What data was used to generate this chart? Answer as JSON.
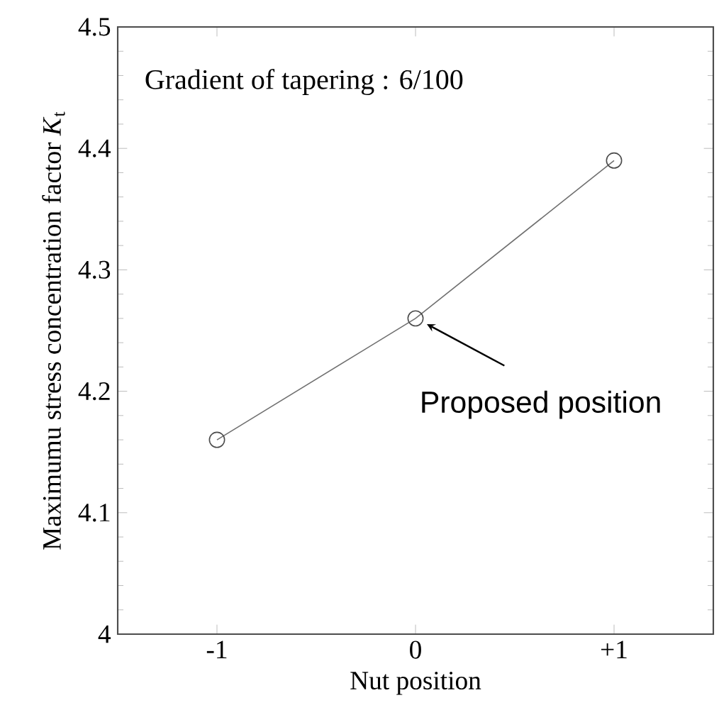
{
  "chart_data": {
    "type": "line",
    "xlabel": "Nut position",
    "ylabel": "Maximumu stress concentration factor *K*$_{t}$",
    "x": [
      -1,
      0,
      1
    ],
    "series": [
      {
        "color": "#707070",
        "values": [
          4.16,
          4.26,
          4.39
        ]
      }
    ],
    "xlim": [
      -1.5,
      1.5
    ],
    "xticks": [
      {
        "value": -1,
        "label": "-1"
      },
      0,
      {
        "value": 1,
        "label": "+1"
      }
    ],
    "ylim": [
      4,
      4.5
    ],
    "yticks": [
      4,
      4.1,
      4.2,
      4.3,
      4.4,
      4.5
    ],
    "marker": "circle",
    "line_style": "solid",
    "grid": false,
    "annotations": [
      "Gradient of tapering : 6/100",
      {
        "text": "Proposed position",
        "x": 0,
        "y": 4.26
      }
    ]
  }
}
